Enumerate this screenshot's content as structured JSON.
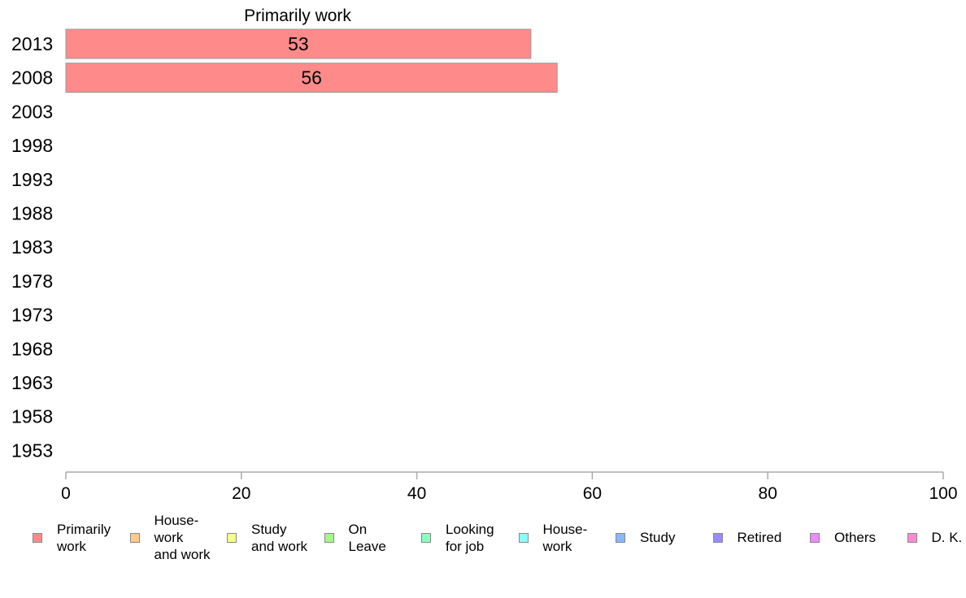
{
  "chart_data": {
    "type": "bar",
    "orientation": "horizontal",
    "title": "Primarily work",
    "categories": [
      "2013",
      "2008",
      "2003",
      "1998",
      "1993",
      "1988",
      "1983",
      "1978",
      "1973",
      "1968",
      "1963",
      "1958",
      "1953"
    ],
    "series": [
      {
        "name": "Primarily work",
        "values": [
          53,
          56,
          null,
          null,
          null,
          null,
          null,
          null,
          null,
          null,
          null,
          null,
          null
        ],
        "color": "#ff8a8a"
      }
    ],
    "data_labels": [
      "53",
      "56"
    ],
    "xlim": [
      0,
      100
    ],
    "xticks": [
      0,
      20,
      40,
      60,
      80,
      100
    ],
    "grid": false,
    "legend_position": "bottom",
    "legend": [
      {
        "label": "Primarily\nwork",
        "color": "#ff8a8a"
      },
      {
        "label": "House-\nwork\nand work",
        "color": "#ffc98a"
      },
      {
        "label": "Study\nand work",
        "color": "#f3ff8a"
      },
      {
        "label": "On\nLeave",
        "color": "#a8f58a"
      },
      {
        "label": "Looking\nfor job",
        "color": "#8affc0"
      },
      {
        "label": "House-\nwork",
        "color": "#8affff"
      },
      {
        "label": "Study",
        "color": "#8ab8ff"
      },
      {
        "label": "Retired",
        "color": "#9a8aff"
      },
      {
        "label": "Others",
        "color": "#ec8aff"
      },
      {
        "label": "D. K.",
        "color": "#ff8ad2"
      }
    ]
  }
}
